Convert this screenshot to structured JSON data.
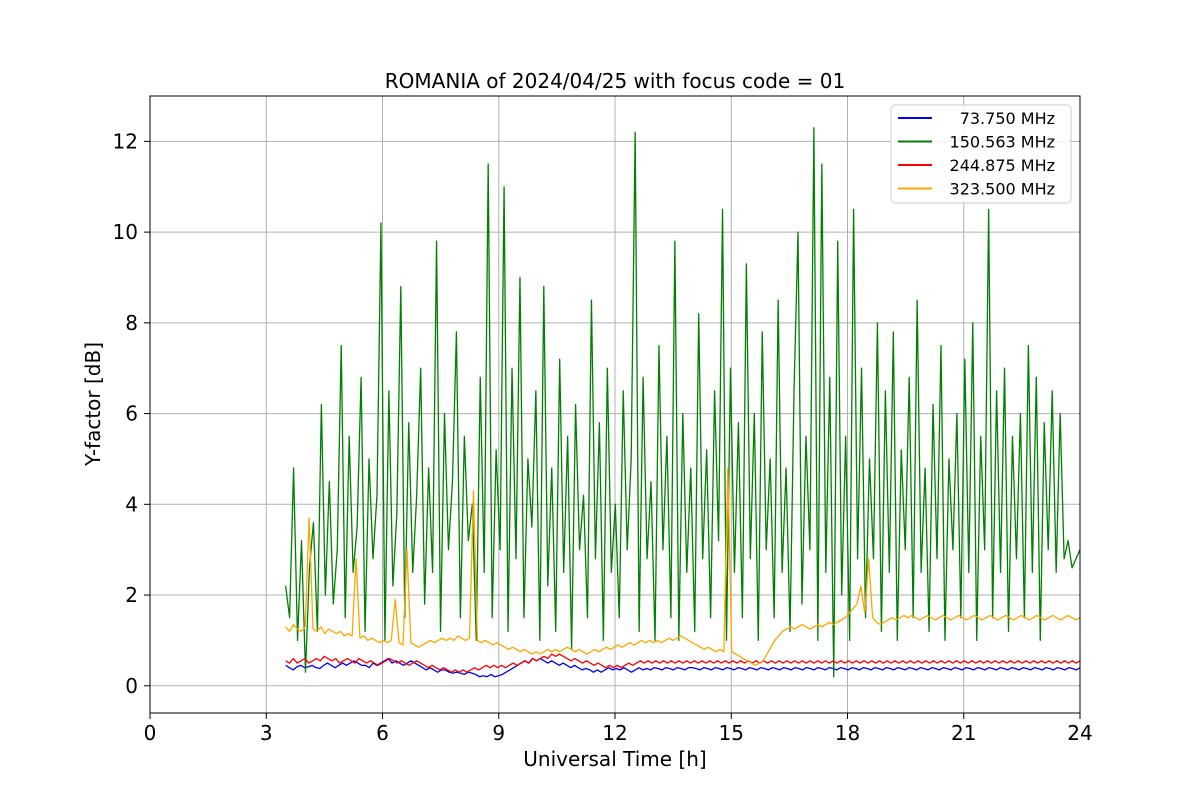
{
  "chart_data": {
    "type": "line",
    "title": "ROMANIA of 2024/04/25 with focus code = 01",
    "xlabel": "Universal Time [h]",
    "ylabel": "Y-factor [dB]",
    "xlim": [
      0,
      24
    ],
    "ylim": [
      -0.6,
      13.0
    ],
    "xticks": [
      0,
      3,
      6,
      9,
      12,
      15,
      18,
      21,
      24
    ],
    "yticks": [
      0,
      2,
      4,
      6,
      8,
      10,
      12
    ],
    "grid": true,
    "legend_position": "top-right",
    "x_start": 3.5,
    "x_end": 24,
    "series": [
      {
        "name": " 73.750 MHz",
        "color": "#0000ff",
        "values": [
          0.45,
          0.4,
          0.35,
          0.42,
          0.45,
          0.4,
          0.42,
          0.45,
          0.4,
          0.38,
          0.45,
          0.5,
          0.45,
          0.4,
          0.45,
          0.5,
          0.45,
          0.5,
          0.55,
          0.5,
          0.45,
          0.45,
          0.4,
          0.5,
          0.45,
          0.5,
          0.55,
          0.6,
          0.5,
          0.55,
          0.5,
          0.45,
          0.5,
          0.55,
          0.5,
          0.45,
          0.4,
          0.35,
          0.4,
          0.35,
          0.3,
          0.35,
          0.35,
          0.3,
          0.28,
          0.3,
          0.28,
          0.25,
          0.3,
          0.28,
          0.25,
          0.2,
          0.22,
          0.2,
          0.25,
          0.2,
          0.22,
          0.25,
          0.3,
          0.35,
          0.4,
          0.45,
          0.5,
          0.55,
          0.5,
          0.6,
          0.55,
          0.6,
          0.55,
          0.5,
          0.55,
          0.5,
          0.45,
          0.5,
          0.45,
          0.4,
          0.45,
          0.4,
          0.35,
          0.38,
          0.35,
          0.3,
          0.35,
          0.3,
          0.35,
          0.4,
          0.35,
          0.38,
          0.35,
          0.4,
          0.35,
          0.3,
          0.35,
          0.4,
          0.35,
          0.38,
          0.35,
          0.4,
          0.38,
          0.35,
          0.4,
          0.38,
          0.35,
          0.4,
          0.38,
          0.35,
          0.4,
          0.4,
          0.38,
          0.35,
          0.4,
          0.38,
          0.35,
          0.4,
          0.38,
          0.35,
          0.4,
          0.38,
          0.35,
          0.4,
          0.38,
          0.35,
          0.4,
          0.38,
          0.35,
          0.4,
          0.38,
          0.35,
          0.4,
          0.38,
          0.35,
          0.4,
          0.38,
          0.35,
          0.4,
          0.38,
          0.35,
          0.4,
          0.38,
          0.35,
          0.4,
          0.38,
          0.35,
          0.4,
          0.38,
          0.35,
          0.4,
          0.38,
          0.35,
          0.4,
          0.38,
          0.35,
          0.4,
          0.38,
          0.35,
          0.4,
          0.38,
          0.35,
          0.4,
          0.38,
          0.35,
          0.4,
          0.38,
          0.35,
          0.4,
          0.38,
          0.35,
          0.4,
          0.38,
          0.35,
          0.4,
          0.38,
          0.35,
          0.4,
          0.38,
          0.35,
          0.4,
          0.38,
          0.35,
          0.4,
          0.38,
          0.35,
          0.4,
          0.38,
          0.35,
          0.4,
          0.38,
          0.35,
          0.4,
          0.38,
          0.35,
          0.4,
          0.38,
          0.35,
          0.4,
          0.38,
          0.35,
          0.4,
          0.38,
          0.35,
          0.4,
          0.38,
          0.35,
          0.4,
          0.38,
          0.35,
          0.4,
          0.38,
          0.35,
          0.4
        ]
      },
      {
        "name": "150.563 MHz",
        "color": "#008000",
        "values": [
          2.2,
          1.5,
          4.8,
          1.0,
          3.2,
          0.3,
          2.6,
          3.6,
          1.2,
          6.2,
          2.0,
          4.5,
          1.8,
          3.0,
          7.5,
          1.5,
          5.5,
          2.5,
          3.5,
          6.8,
          1.2,
          5.0,
          2.8,
          4.2,
          10.2,
          1.0,
          6.5,
          2.2,
          3.8,
          8.8,
          1.5,
          5.8,
          2.5,
          4.2,
          7.0,
          1.8,
          4.8,
          2.5,
          9.8,
          1.2,
          6.0,
          3.0,
          4.5,
          7.8,
          1.5,
          5.5,
          3.2,
          4.0,
          1.0,
          6.8,
          2.5,
          11.5,
          1.5,
          5.2,
          3.0,
          11.0,
          1.2,
          7.0,
          2.8,
          9.0,
          1.5,
          5.0,
          3.5,
          6.5,
          1.0,
          8.8,
          2.2,
          4.8,
          1.2,
          7.2,
          2.5,
          5.5,
          0.8,
          6.2,
          3.0,
          4.2,
          1.5,
          8.5,
          2.8,
          5.8,
          1.0,
          7.0,
          2.5,
          4.0,
          1.5,
          6.5,
          3.0,
          5.0,
          12.2,
          1.2,
          6.8,
          2.8,
          4.5,
          1.0,
          7.5,
          3.0,
          5.5,
          1.5,
          9.8,
          1.0,
          6.0,
          2.5,
          4.8,
          1.2,
          8.2,
          2.8,
          5.2,
          1.5,
          6.5,
          3.2,
          10.5,
          1.0,
          7.0,
          2.5,
          5.8,
          1.5,
          9.3,
          2.8,
          6.0,
          1.0,
          7.8,
          3.0,
          5.0,
          1.5,
          8.5,
          2.5,
          4.8,
          1.2,
          6.5,
          10.0,
          1.8,
          5.5,
          3.0,
          12.3,
          1.0,
          11.5,
          2.5,
          6.8,
          0.2,
          9.8,
          2.0,
          5.5,
          1.0,
          10.5,
          2.8,
          7.0,
          1.5,
          5.0,
          2.8,
          8.0,
          1.2,
          6.5,
          2.5,
          7.8,
          1.0,
          5.2,
          3.0,
          6.8,
          1.5,
          8.5,
          2.5,
          4.8,
          1.2,
          6.2,
          2.8,
          7.5,
          1.0,
          5.0,
          3.0,
          6.0,
          1.5,
          7.2,
          2.5,
          8.0,
          1.0,
          5.5,
          3.0,
          10.5,
          1.5,
          6.5,
          2.5,
          7.0,
          1.2,
          5.5,
          2.8,
          6.0,
          1.5,
          7.5,
          2.5,
          6.8,
          1.0,
          5.8,
          3.0,
          6.5,
          2.5,
          6.0,
          2.8,
          3.2,
          2.6,
          2.8,
          3.0
        ]
      },
      {
        "name": "244.875 MHz",
        "color": "#ff0000",
        "values": [
          0.55,
          0.5,
          0.6,
          0.5,
          0.55,
          0.6,
          0.5,
          0.55,
          0.6,
          0.55,
          0.65,
          0.6,
          0.55,
          0.6,
          0.5,
          0.55,
          0.6,
          0.55,
          0.5,
          0.6,
          0.55,
          0.5,
          0.55,
          0.5,
          0.45,
          0.5,
          0.55,
          0.6,
          0.55,
          0.5,
          0.55,
          0.5,
          0.45,
          0.5,
          0.55,
          0.5,
          0.45,
          0.4,
          0.45,
          0.4,
          0.35,
          0.4,
          0.35,
          0.3,
          0.35,
          0.3,
          0.35,
          0.3,
          0.35,
          0.4,
          0.35,
          0.4,
          0.45,
          0.4,
          0.45,
          0.4,
          0.45,
          0.4,
          0.45,
          0.5,
          0.45,
          0.5,
          0.55,
          0.5,
          0.6,
          0.55,
          0.6,
          0.65,
          0.6,
          0.7,
          0.65,
          0.7,
          0.65,
          0.6,
          0.55,
          0.6,
          0.55,
          0.5,
          0.55,
          0.5,
          0.45,
          0.5,
          0.45,
          0.4,
          0.45,
          0.4,
          0.45,
          0.4,
          0.45,
          0.5,
          0.45,
          0.5,
          0.55,
          0.5,
          0.55,
          0.5,
          0.55,
          0.5,
          0.55,
          0.5,
          0.55,
          0.5,
          0.55,
          0.5,
          0.55,
          0.5,
          0.55,
          0.5,
          0.55,
          0.5,
          0.55,
          0.5,
          0.55,
          0.5,
          0.55,
          0.5,
          0.55,
          0.5,
          0.55,
          0.5,
          0.55,
          0.5,
          0.55,
          0.5,
          0.55,
          0.5,
          0.55,
          0.5,
          0.55,
          0.5,
          0.55,
          0.5,
          0.55,
          0.5,
          0.55,
          0.5,
          0.55,
          0.5,
          0.55,
          0.5,
          0.55,
          0.5,
          0.55,
          0.5,
          0.55,
          0.5,
          0.55,
          0.5,
          0.55,
          0.5,
          0.55,
          0.5,
          0.55,
          0.5,
          0.55,
          0.5,
          0.55,
          0.5,
          0.55,
          0.5,
          0.55,
          0.5,
          0.55,
          0.5,
          0.55,
          0.5,
          0.55,
          0.5,
          0.55,
          0.5,
          0.55,
          0.5,
          0.55,
          0.5,
          0.55,
          0.5,
          0.55,
          0.5,
          0.55,
          0.5,
          0.55,
          0.5,
          0.55,
          0.5,
          0.55,
          0.5,
          0.55,
          0.5,
          0.55,
          0.5,
          0.55,
          0.5,
          0.55,
          0.5,
          0.55,
          0.5,
          0.55,
          0.5,
          0.55,
          0.5,
          0.55,
          0.5,
          0.55,
          0.5,
          0.55,
          0.5,
          0.55
        ]
      },
      {
        "name": "323.500 MHz",
        "color": "#ffa500",
        "values": [
          1.3,
          1.2,
          1.35,
          1.25,
          1.2,
          1.3,
          3.7,
          1.25,
          1.2,
          1.3,
          1.15,
          1.25,
          1.2,
          1.15,
          1.2,
          1.1,
          1.15,
          1.1,
          2.8,
          1.05,
          1.1,
          1.0,
          1.05,
          1.0,
          0.95,
          1.0,
          0.95,
          1.0,
          1.9,
          0.95,
          0.9,
          3.0,
          0.95,
          0.9,
          0.85,
          0.9,
          0.95,
          1.0,
          0.95,
          1.0,
          1.05,
          1.0,
          1.05,
          1.0,
          1.1,
          1.05,
          1.0,
          1.05,
          4.3,
          1.0,
          0.95,
          1.0,
          0.95,
          0.9,
          0.95,
          0.9,
          0.85,
          0.8,
          0.85,
          0.8,
          0.75,
          0.8,
          0.75,
          0.7,
          0.75,
          0.7,
          0.75,
          0.8,
          0.75,
          0.8,
          0.75,
          0.8,
          0.85,
          0.8,
          0.75,
          0.8,
          0.75,
          0.7,
          0.75,
          0.8,
          0.75,
          0.8,
          0.85,
          0.8,
          0.85,
          0.9,
          0.85,
          0.9,
          0.95,
          0.9,
          0.95,
          1.0,
          0.95,
          1.0,
          0.95,
          1.0,
          0.95,
          1.0,
          1.05,
          1.0,
          1.05,
          1.1,
          1.05,
          1.0,
          0.95,
          0.9,
          0.85,
          0.8,
          0.85,
          0.8,
          0.75,
          0.8,
          0.75,
          4.8,
          0.75,
          0.7,
          0.65,
          0.6,
          0.55,
          0.5,
          0.45,
          0.5,
          0.55,
          0.7,
          0.85,
          1.0,
          1.1,
          1.2,
          1.25,
          1.3,
          1.25,
          1.3,
          1.35,
          1.3,
          1.25,
          1.3,
          1.35,
          1.3,
          1.35,
          1.4,
          1.35,
          1.4,
          1.45,
          1.5,
          1.6,
          1.7,
          1.8,
          2.2,
          1.6,
          2.8,
          1.5,
          1.4,
          1.35,
          1.4,
          1.45,
          1.5,
          1.45,
          1.5,
          1.55,
          1.5,
          1.55,
          1.5,
          1.45,
          1.5,
          1.55,
          1.5,
          1.45,
          1.5,
          1.55,
          1.5,
          1.45,
          1.5,
          1.55,
          1.5,
          1.45,
          1.5,
          1.55,
          1.5,
          1.45,
          1.5,
          1.55,
          1.5,
          1.45,
          1.5,
          1.55,
          1.5,
          1.45,
          1.5,
          1.55,
          1.5,
          1.45,
          1.5,
          1.55,
          1.5,
          1.45,
          1.5,
          1.55,
          1.5,
          1.45,
          1.5,
          1.55,
          1.5,
          1.45,
          1.5
        ]
      }
    ]
  }
}
